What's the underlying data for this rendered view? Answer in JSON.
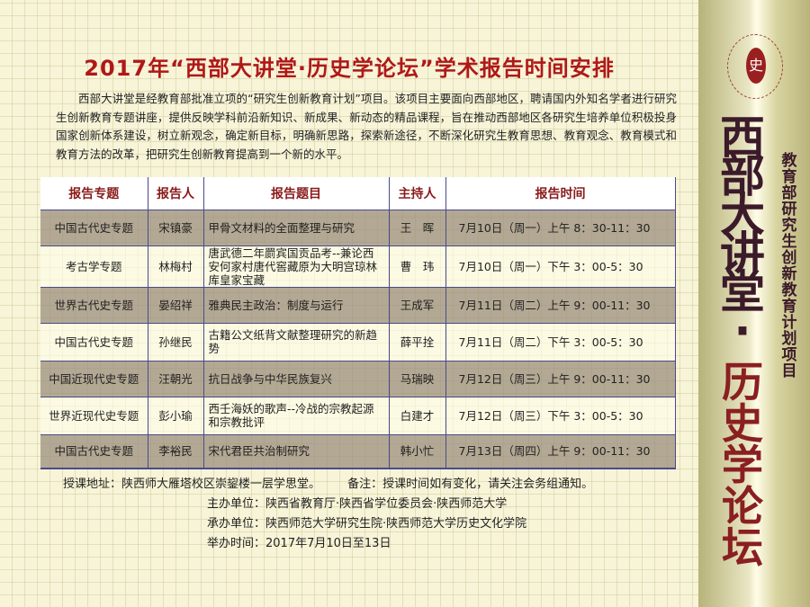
{
  "title": "2017年“西部大讲堂·历史学论坛”学术报告时间安排",
  "intro": "西部大讲堂是经教育部批准立项的“研究生创新教育计划”项目。该项目主要面向西部地区，聘请国内外知名学者进行研究生创新教育专题讲座，提供反映学科前沿新知识、新成果、新动态的精品课程，旨在推动西部地区各研究生培养单位积极投身国家创新体系建设，树立新观念，确定新目标，明确新思路，探索新途径，不断深化研究生教育思想、教育观念、教育模式和教育方法的改革，把研究生创新教育提高到一个新的水平。",
  "table": {
    "headers": [
      "报告专题",
      "报告人",
      "报告题目",
      "主持人",
      "报告时间"
    ],
    "rows": [
      [
        "中国古代史专题",
        "宋镇豪",
        "甲骨文材料的全面整理与研究",
        "王　晖",
        "7月10日（周一）上午 8：30-11：30"
      ],
      [
        "考古学专题",
        "林梅村",
        "唐武德二年罽宾国贡品考--兼论西安何家村唐代窖藏原为大明宫琼林库皇家宝藏",
        "曹　玮",
        "7月10日（周一）下午 3：00-5：30"
      ],
      [
        "世界古代史专题",
        "晏绍祥",
        "雅典民主政治：制度与运行",
        "王成军",
        "7月11日（周二）上午 9：00-11：30"
      ],
      [
        "中国古代史专题",
        "孙继民",
        "古籍公文纸背文献整理研究的新趋势",
        "薛平拴",
        "7月11日（周二）下午 3：00-5：30"
      ],
      [
        "中国近现代史专题",
        "汪朝光",
        "抗日战争与中华民族复兴",
        "马瑞映",
        "7月12日（周三）上午 9：00-11：30"
      ],
      [
        "世界近现代史专题",
        "彭小瑜",
        "西壬海妖的歌声--冷战的宗教起源和宗教批评",
        "白建才",
        "7月12日（周三）下午 3：00-5：30"
      ],
      [
        "中国古代史专题",
        "李裕民",
        "宋代君臣共治制研究",
        "韩小忙",
        "7月13日（周四）上午 9：00-11：30"
      ]
    ]
  },
  "footer": {
    "address": "授课地址：陕西师大雁塔校区崇鋆楼一层学思堂。",
    "note": "备注：授课时间如有变化，请关注会务组通知。",
    "host": "主办单位：陕西省教育厅·陕西省学位委员会·陕西师范大学",
    "organizer": "承办单位：陕西师范大学研究生院·陕西师范大学历史文化学院",
    "dates": "举办时间：2017年7月10日至13日"
  },
  "side": {
    "big_title_1": "西部大讲堂·",
    "big_title_2": "历史学论坛",
    "subtitle": "教育部研究生创新教育计划项目",
    "seal_char": "史"
  },
  "colors": {
    "title": "#b01818",
    "header_text": "#8a1a1a",
    "row_shade": "#a89c90",
    "side_gold": "#b7b37a"
  }
}
